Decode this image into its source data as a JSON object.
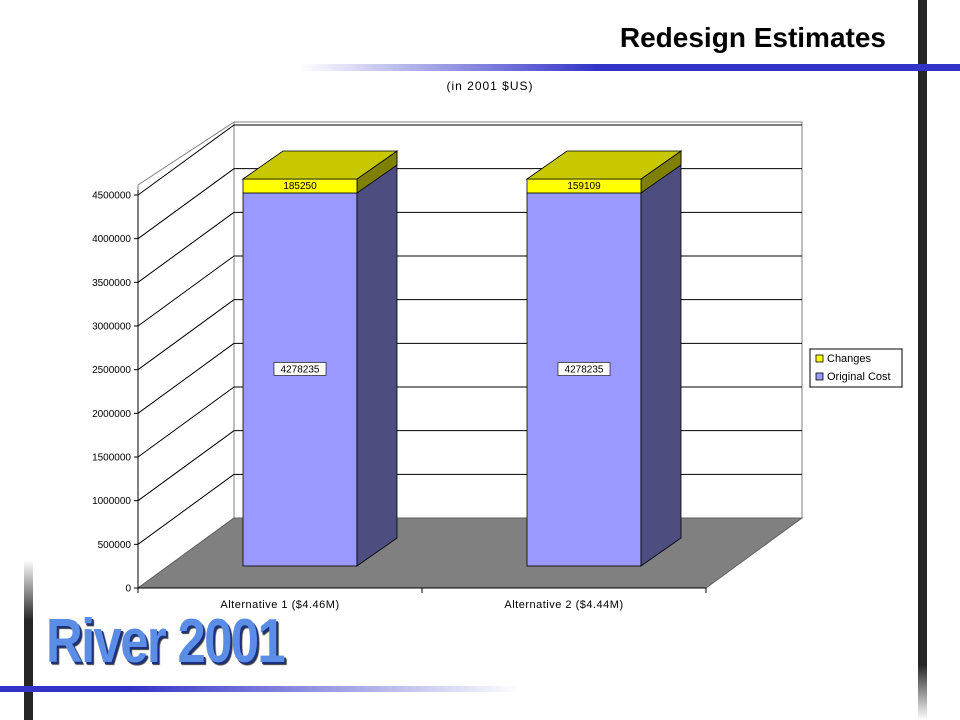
{
  "slide": {
    "title": "Redesign Estimates",
    "logo": "River 2001",
    "colors": {
      "accent_line": "#3333c8",
      "frame_bar": "#262626",
      "logo": "#5b8de6"
    }
  },
  "chart_data": {
    "type": "bar",
    "stacked": true,
    "style": "3d",
    "title": "(in 2001 $US)",
    "categories": [
      "Alternative 1 ($4.46M)",
      "Alternative 2 ($4.44M)"
    ],
    "series": [
      {
        "name": "Original Cost",
        "values": [
          4278235,
          4278235
        ],
        "color": "#9999ff",
        "side_color": "#4d4d80"
      },
      {
        "name": "Changes",
        "values": [
          185250,
          159109
        ],
        "color": "#ffff00",
        "top_color": "#c8c800"
      }
    ],
    "ylim": [
      0,
      4500000
    ],
    "yticks": [
      0,
      500000,
      1000000,
      1500000,
      2000000,
      2500000,
      3000000,
      3500000,
      4000000,
      4500000
    ],
    "grid": true,
    "legend": "right",
    "data_labels": true
  }
}
